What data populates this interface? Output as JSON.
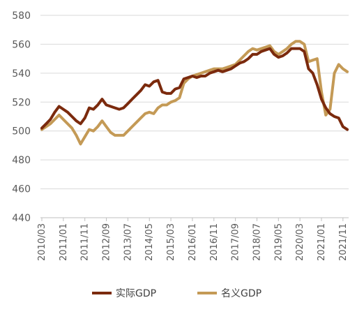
{
  "chart_data": {
    "type": "line",
    "title": "",
    "xlabel": "",
    "ylabel": "",
    "ylim": [
      440,
      580
    ],
    "yticks": [
      440,
      460,
      480,
      500,
      520,
      540,
      560,
      580
    ],
    "xticks": [
      "2010/03",
      "2011/01",
      "2011/11",
      "2012/09",
      "2013/07",
      "2014/05",
      "2015/03",
      "2016/01",
      "2016/11",
      "2017/09",
      "2018/07",
      "2019/05",
      "2020/03",
      "2021/01",
      "2021/11"
    ],
    "grid": "horizontal",
    "legend": "bottom",
    "x": [
      "2010/03",
      "2010/05",
      "2010/07",
      "2010/09",
      "2010/11",
      "2011/01",
      "2011/03",
      "2011/05",
      "2011/07",
      "2011/09",
      "2011/11",
      "2012/01",
      "2012/03",
      "2012/05",
      "2012/07",
      "2012/09",
      "2012/11",
      "2013/01",
      "2013/03",
      "2013/05",
      "2013/07",
      "2013/09",
      "2013/11",
      "2014/01",
      "2014/03",
      "2014/05",
      "2014/07",
      "2014/09",
      "2014/11",
      "2015/01",
      "2015/03",
      "2015/05",
      "2015/07",
      "2015/09",
      "2015/11",
      "2016/01",
      "2016/03",
      "2016/05",
      "2016/07",
      "2016/09",
      "2016/11",
      "2017/01",
      "2017/03",
      "2017/05",
      "2017/07",
      "2017/09",
      "2017/11",
      "2018/01",
      "2018/03",
      "2018/05",
      "2018/07",
      "2018/09",
      "2018/11",
      "2019/01",
      "2019/03",
      "2019/05",
      "2019/07",
      "2019/09",
      "2019/11",
      "2020/01",
      "2020/03",
      "2020/05",
      "2020/07",
      "2020/09",
      "2020/11",
      "2021/01",
      "2021/03",
      "2021/05",
      "2021/07",
      "2021/09",
      "2021/11",
      "2022/01"
    ],
    "series": [
      {
        "name": "实际GDP",
        "color": "#7b2a0d",
        "values": [
          502,
          505,
          508,
          513,
          517,
          515,
          513,
          510,
          507,
          505,
          509,
          516,
          515,
          518,
          522,
          518,
          517,
          516,
          515,
          516,
          519,
          522,
          525,
          528,
          532,
          531,
          534,
          535,
          527,
          526,
          526,
          529,
          530,
          536,
          537,
          538,
          537,
          538,
          538,
          540,
          541,
          542,
          541,
          542,
          543,
          545,
          547,
          548,
          550,
          553,
          553,
          555,
          556,
          557,
          553,
          551,
          552,
          554,
          557,
          557,
          557,
          555,
          543,
          540,
          532,
          522,
          516,
          512,
          510,
          509,
          503,
          501
        ]
      },
      {
        "name": "名义GDP",
        "color": "#c49a56",
        "values": [
          501,
          503,
          505,
          508,
          511,
          508,
          505,
          502,
          497,
          491,
          496,
          501,
          500,
          503,
          507,
          503,
          499,
          497,
          497,
          497,
          500,
          503,
          506,
          509,
          512,
          513,
          512,
          516,
          518,
          518,
          520,
          521,
          523,
          533,
          536,
          538,
          539,
          540,
          541,
          542,
          543,
          543,
          543,
          544,
          545,
          546,
          549,
          552,
          555,
          557,
          556,
          557,
          558,
          559,
          555,
          553,
          555,
          557,
          560,
          562,
          562,
          560,
          548,
          549,
          550,
          527,
          511,
          515,
          540,
          546,
          543,
          541
        ]
      }
    ]
  },
  "legend": {
    "items": [
      {
        "label": "实际GDP",
        "color": "#7b2a0d"
      },
      {
        "label": "名义GDP",
        "color": "#c49a56"
      }
    ]
  }
}
